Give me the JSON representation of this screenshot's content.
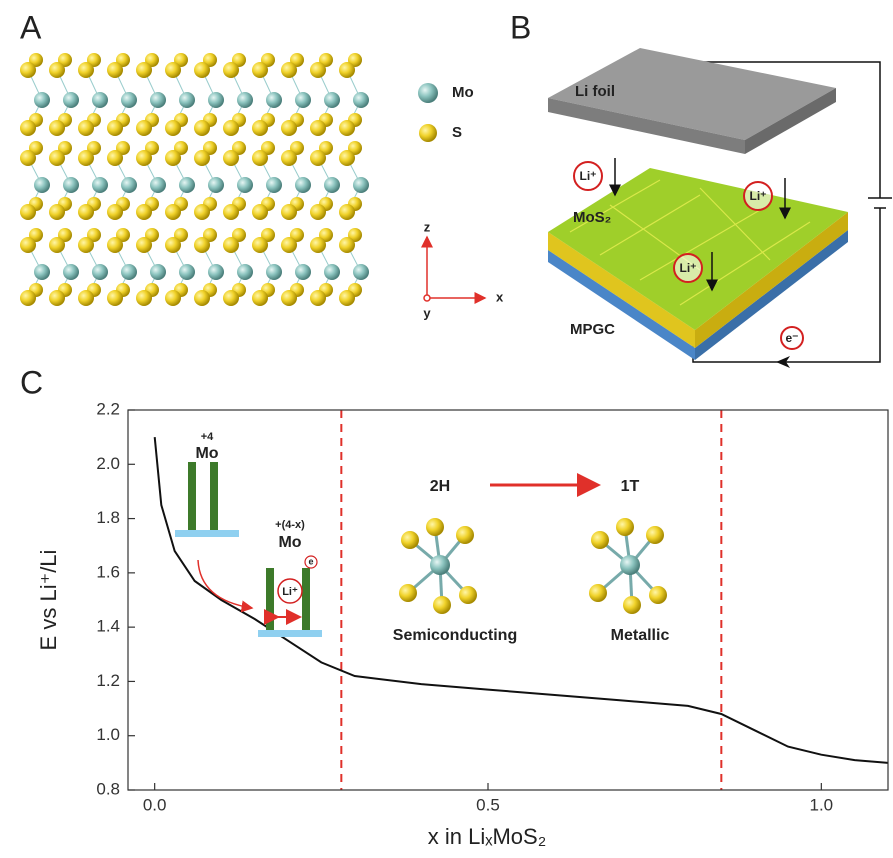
{
  "panel_a": {
    "label": "A",
    "legend": [
      "Mo",
      "S"
    ],
    "axes": [
      "z",
      "y",
      "x"
    ]
  },
  "panel_b": {
    "label": "B",
    "li_foil": "Li foil",
    "mos2": "MoS₂",
    "mpgc": "MPGC",
    "li_ions": [
      "Li⁺",
      "Li⁺",
      "Li⁺"
    ],
    "electron": "e⁻"
  },
  "panel_c": {
    "label": "C"
  },
  "chart_data": {
    "type": "line",
    "x_label": "x in LiₓMoS₂",
    "y_label": "E vs Li⁺/Li",
    "x": [
      0,
      0.01,
      0.03,
      0.06,
      0.1,
      0.15,
      0.2,
      0.25,
      0.3,
      0.4,
      0.5,
      0.6,
      0.7,
      0.8,
      0.85,
      0.9,
      0.95,
      1.0,
      1.05,
      1.1
    ],
    "values": [
      2.1,
      1.85,
      1.68,
      1.57,
      1.5,
      1.43,
      1.35,
      1.27,
      1.22,
      1.19,
      1.17,
      1.15,
      1.13,
      1.11,
      1.08,
      1.02,
      0.96,
      0.93,
      0.91,
      0.9
    ],
    "color": "#111111",
    "xlim": [
      -0.04,
      1.1
    ],
    "ylim": [
      0.8,
      2.2
    ],
    "xticks": [
      {
        "value": 0,
        "label": "0.0"
      },
      0.5,
      {
        "value": 1,
        "label": "1.0"
      }
    ],
    "yticks": [
      0.8,
      {
        "value": 1,
        "label": "1.0"
      },
      1.2,
      1.4,
      1.6,
      1.8,
      {
        "value": 2,
        "label": "2.0"
      },
      2.2
    ],
    "vlines": [
      0.28,
      0.85
    ],
    "vline_color": "#e0302a",
    "annotations": [
      "+4",
      "Mo",
      "+(4-x)",
      "Mo",
      "Li⁺",
      "e",
      "2H",
      "1T",
      "Semiconducting",
      "Metallic"
    ]
  }
}
